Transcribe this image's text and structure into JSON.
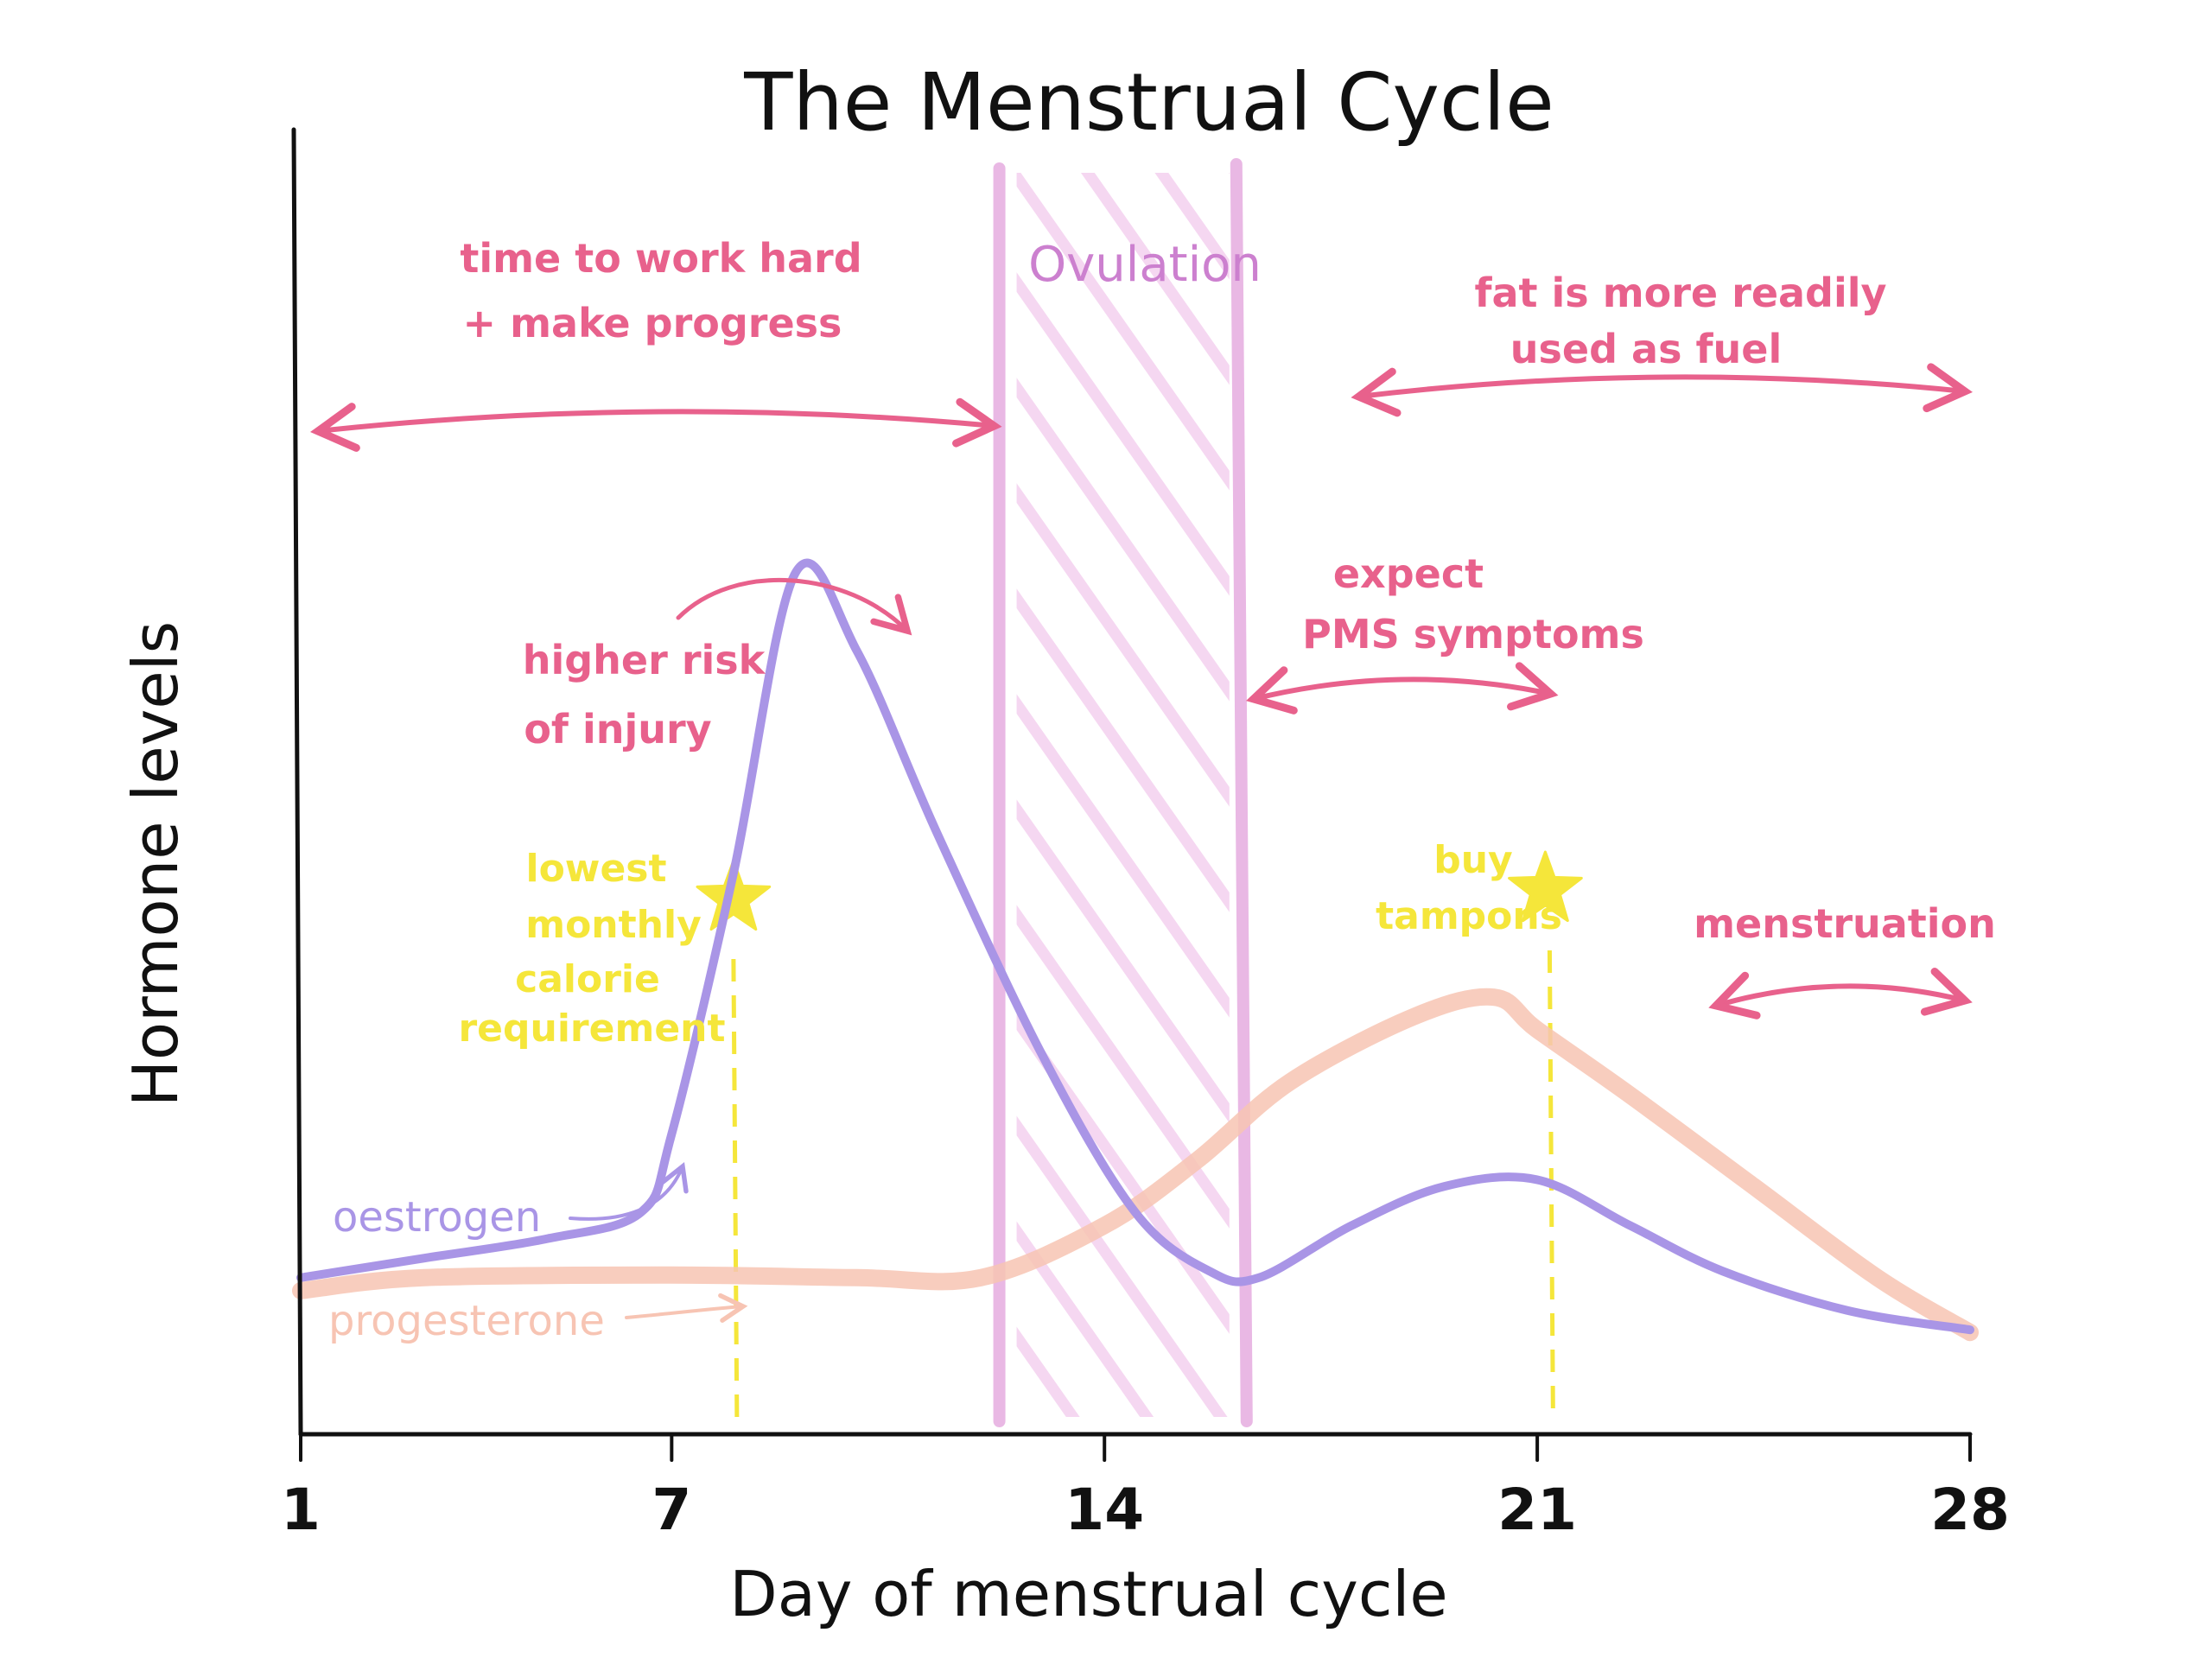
{
  "chart_data": {
    "type": "line",
    "title": "The Menstrual Cycle",
    "xlabel": "Day of menstrual cycle",
    "ylabel": "Hormone levels",
    "xlim": [
      1,
      28
    ],
    "ylim": [
      0,
      10
    ],
    "x_ticks": [
      1,
      7,
      14,
      21,
      28
    ],
    "x_tick_labels": [
      "1",
      "7",
      "14",
      "21",
      "28"
    ],
    "grid": false,
    "series": [
      {
        "name": "oestrogen",
        "color": "#a995e6",
        "points": [
          [
            1,
            1.2
          ],
          [
            3,
            1.35
          ],
          [
            5,
            1.5
          ],
          [
            6.5,
            1.7
          ],
          [
            7,
            2.3
          ],
          [
            8,
            4.3
          ],
          [
            9,
            6.6
          ],
          [
            10,
            6.0
          ],
          [
            11.3,
            4.6
          ],
          [
            13,
            2.9
          ],
          [
            14.5,
            1.7
          ],
          [
            15.7,
            1.25
          ],
          [
            16.5,
            1.2
          ],
          [
            18,
            1.6
          ],
          [
            19.5,
            1.9
          ],
          [
            21,
            1.95
          ],
          [
            22.5,
            1.6
          ],
          [
            24,
            1.25
          ],
          [
            26,
            0.95
          ],
          [
            28,
            0.8
          ]
        ]
      },
      {
        "name": "progesterone",
        "color": "#f7c4b3",
        "points": [
          [
            1,
            1.1
          ],
          [
            3,
            1.2
          ],
          [
            7,
            1.22
          ],
          [
            10,
            1.2
          ],
          [
            12,
            1.2
          ],
          [
            14,
            1.6
          ],
          [
            15.5,
            2.1
          ],
          [
            17,
            2.7
          ],
          [
            19,
            3.2
          ],
          [
            20.3,
            3.35
          ],
          [
            21,
            3.1
          ],
          [
            22.5,
            2.6
          ],
          [
            24.5,
            1.9
          ],
          [
            26.5,
            1.2
          ],
          [
            28,
            0.78
          ]
        ]
      }
    ],
    "bands": [
      {
        "label": "Ovulation",
        "x_from": 12.3,
        "x_to": 16.3,
        "color": "#e9b8e4"
      }
    ],
    "markers": [
      {
        "x": 8,
        "label": "lowest monthly calorie requirement",
        "color": "#f5e63a"
      },
      {
        "x": 21.2,
        "label": "buy tampons",
        "color": "#f5e63a"
      }
    ],
    "ranges": [
      {
        "x_from": 1,
        "x_to": 12.3,
        "label": "time to work hard + make progress",
        "color": "#e8618c"
      },
      {
        "x_from": 18,
        "x_to": 28,
        "label": "fat is more readily used as fuel",
        "color": "#e8618c"
      },
      {
        "x_from": 16.3,
        "x_to": 21.3,
        "label": "expect PMS symptoms",
        "color": "#e8618c"
      },
      {
        "x_from": 23.5,
        "x_to": 28,
        "label": "menstruation",
        "color": "#e8618c"
      }
    ],
    "annotations": [
      {
        "label": "higher risk of injury",
        "color": "#e8618c"
      }
    ]
  },
  "labels": {
    "title": "The Menstrual Cycle",
    "xlabel": "Day of menstrual cycle",
    "ylabel": "Hormone levels",
    "ovulation": "Ovulation",
    "range_work_line1": "time to work hard",
    "range_work_line2": "+ make progress",
    "range_fat_line1": "fat is more readily",
    "range_fat_line2": "used as fuel",
    "pms_line1": "expect",
    "pms_line2": "PMS symptoms",
    "injury_line1": "higher risk",
    "injury_line2": "of injury",
    "menstruation": "menstruation",
    "calorie_line1": "lowest",
    "calorie_line2": "monthly",
    "calorie_line3": "calorie",
    "calorie_line4": "requirement",
    "tampons_line1": "buy",
    "tampons_line2": "tampons",
    "oestrogen": "oestrogen",
    "progesterone": "progesterone"
  },
  "colors": {
    "pink": "#e8618c",
    "purple": "#a995e6",
    "peach": "#f7c4b3",
    "yellow": "#f5e63a",
    "ovulation_band": "#e9b8e4",
    "ovulation_text": "#cc80cf",
    "axis": "#111111"
  }
}
